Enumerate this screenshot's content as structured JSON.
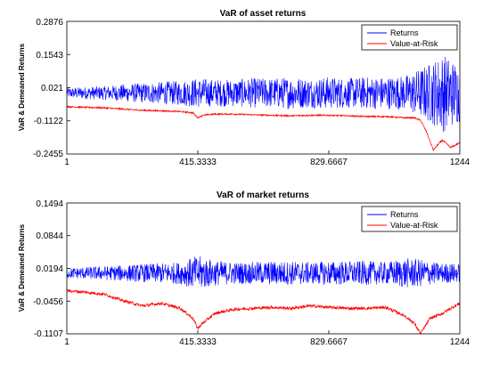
{
  "chart_data": [
    {
      "type": "line",
      "title": "VaR of asset returns",
      "ylabel": "VaR & Demeaned Returns",
      "xlabel": "",
      "xlim": [
        1,
        1244
      ],
      "ylim": [
        -0.2455,
        0.2876
      ],
      "xticks": [
        1,
        415.3333,
        829.6667,
        1244
      ],
      "xtick_labels": [
        "1",
        "415.3333",
        "829.6667",
        "1244"
      ],
      "yticks": [
        0.2876,
        0.1543,
        0.021,
        -0.1122,
        -0.2455
      ],
      "ytick_labels": [
        "0.2876",
        "0.1543",
        "0.021",
        "-0.1122",
        "-0.2455"
      ],
      "legend_position": "top-right",
      "grid": false,
      "series": [
        {
          "name": "Returns",
          "color": "#0000ff",
          "x": [
            1,
            60,
            120,
            180,
            240,
            300,
            360,
            415,
            470,
            530,
            590,
            650,
            710,
            770,
            830,
            890,
            950,
            1010,
            1070,
            1120,
            1160,
            1190,
            1215,
            1244
          ],
          "base": [
            0.0,
            0.0,
            0.0,
            0.0,
            0.0,
            0.0,
            0.0,
            0.0,
            0.0,
            0.0,
            0.0,
            0.0,
            0.0,
            0.0,
            0.0,
            0.0,
            0.0,
            0.0,
            0.0,
            0.0,
            0.0,
            0.0,
            0.0,
            0.0
          ],
          "amp": [
            0.02,
            0.025,
            0.028,
            0.035,
            0.04,
            0.045,
            0.05,
            0.06,
            0.055,
            0.055,
            0.06,
            0.06,
            0.065,
            0.06,
            0.065,
            0.06,
            0.065,
            0.065,
            0.07,
            0.1,
            0.13,
            0.16,
            0.14,
            0.12
          ]
        },
        {
          "name": "Value-at-Risk",
          "color": "#ff0000",
          "x": [
            1,
            60,
            120,
            180,
            240,
            300,
            360,
            400,
            415,
            430,
            470,
            530,
            590,
            650,
            710,
            770,
            830,
            890,
            950,
            1010,
            1070,
            1100,
            1120,
            1140,
            1160,
            1180,
            1190,
            1215,
            1244
          ],
          "base": [
            -0.055,
            -0.058,
            -0.06,
            -0.065,
            -0.07,
            -0.072,
            -0.075,
            -0.08,
            -0.1,
            -0.09,
            -0.085,
            -0.085,
            -0.088,
            -0.09,
            -0.092,
            -0.09,
            -0.09,
            -0.092,
            -0.095,
            -0.095,
            -0.1,
            -0.1,
            -0.11,
            -0.16,
            -0.23,
            -0.2,
            -0.19,
            -0.22,
            -0.2
          ]
        }
      ]
    },
    {
      "type": "line",
      "title": "VaR of market returns",
      "ylabel": "VaR & Demeaned Returns",
      "xlabel": "",
      "xlim": [
        1,
        1244
      ],
      "ylim": [
        -0.1107,
        0.1494
      ],
      "xticks": [
        1,
        415.3333,
        829.6667,
        1244
      ],
      "xtick_labels": [
        "1",
        "415.3333",
        "829.6667",
        "1244"
      ],
      "yticks": [
        0.1494,
        0.0844,
        0.0194,
        -0.0456,
        -0.1107
      ],
      "ytick_labels": [
        "0.1494",
        "0.0844",
        "0.0194",
        "-0.0456",
        "-0.1107"
      ],
      "legend_position": "top-right",
      "grid": false,
      "series": [
        {
          "name": "Returns",
          "color": "#0000ff",
          "x": [
            1,
            60,
            120,
            180,
            240,
            300,
            360,
            415,
            470,
            530,
            590,
            650,
            710,
            770,
            830,
            890,
            950,
            1010,
            1070,
            1120,
            1160,
            1190,
            1215,
            1244
          ],
          "base": [
            0.01,
            0.01,
            0.01,
            0.01,
            0.01,
            0.01,
            0.01,
            0.01,
            0.01,
            0.01,
            0.01,
            0.01,
            0.01,
            0.01,
            0.01,
            0.01,
            0.01,
            0.01,
            0.01,
            0.01,
            0.01,
            0.01,
            0.01,
            0.01
          ],
          "amp": [
            0.01,
            0.012,
            0.014,
            0.016,
            0.018,
            0.02,
            0.022,
            0.035,
            0.025,
            0.022,
            0.022,
            0.024,
            0.024,
            0.022,
            0.024,
            0.024,
            0.024,
            0.022,
            0.03,
            0.028,
            0.022,
            0.02,
            0.02,
            0.018
          ]
        },
        {
          "name": "Value-at-Risk",
          "color": "#ff0000",
          "x": [
            1,
            60,
            120,
            180,
            240,
            300,
            360,
            400,
            415,
            430,
            470,
            530,
            590,
            650,
            710,
            770,
            830,
            890,
            950,
            1010,
            1070,
            1100,
            1120,
            1150,
            1190,
            1215,
            1244
          ],
          "base": [
            -0.025,
            -0.028,
            -0.032,
            -0.045,
            -0.055,
            -0.05,
            -0.06,
            -0.08,
            -0.1,
            -0.09,
            -0.07,
            -0.062,
            -0.06,
            -0.058,
            -0.06,
            -0.055,
            -0.058,
            -0.06,
            -0.06,
            -0.058,
            -0.075,
            -0.09,
            -0.11,
            -0.08,
            -0.07,
            -0.06,
            -0.05
          ]
        }
      ]
    }
  ]
}
